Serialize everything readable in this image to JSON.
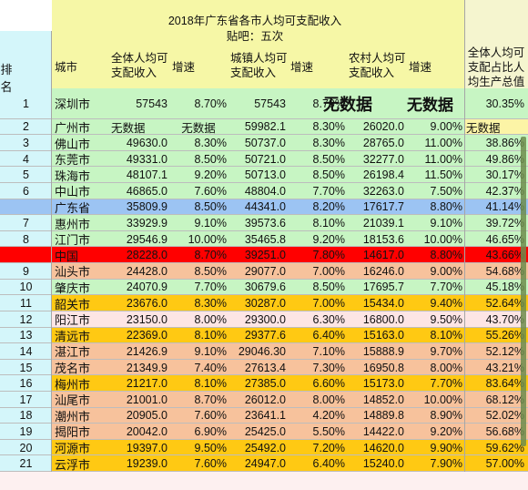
{
  "title": "2018年广东省各市人均可支配收入",
  "subtitle": "贴吧：五次",
  "headers": {
    "rank": "排名",
    "city": "城市",
    "all_income": "全体人均可支配收入",
    "all_growth": "增速",
    "urban_income": "城镇人均可支配收入",
    "urban_growth": "增速",
    "rural_income": "农村人均可支配收入",
    "rural_growth": "增速",
    "gdp_ratio": "全体人均可支配占比人均生产总值"
  },
  "colors": {
    "green": "#c7f5c3",
    "blue": "#9cc4f3",
    "red": "#ff0000",
    "orange": "#f7c29c",
    "gold": "#ffc913",
    "pink": "#fde5e5",
    "yellow_light": "#fcf4a6"
  },
  "rows": [
    {
      "rank": "1",
      "city": "深圳市",
      "all": "57543",
      "all_g": "8.70%",
      "urb": "57543",
      "urb_g": "8.70%",
      "rur": "无数据",
      "rur_g": "无数据",
      "gdp": "30.35%",
      "color": "#c7f5c3",
      "special": "big_nd"
    },
    {
      "rank": "2",
      "city": "广州市",
      "all": "无数据",
      "all_g": "无数据",
      "urb": "59982.1",
      "urb_g": "8.30%",
      "rur": "26020.0",
      "rur_g": "9.00%",
      "gdp": "无数据",
      "color": "#c7f5c3",
      "special": "nd",
      "gdp_color": "#fcf4a6"
    },
    {
      "rank": "3",
      "city": "佛山市",
      "all": "49630.0",
      "all_g": "8.30%",
      "urb": "50737.0",
      "urb_g": "8.30%",
      "rur": "28765.0",
      "rur_g": "11.00%",
      "gdp": "38.86%",
      "color": "#c7f5c3"
    },
    {
      "rank": "4",
      "city": "东莞市",
      "all": "49331.0",
      "all_g": "8.50%",
      "urb": "50721.0",
      "urb_g": "8.50%",
      "rur": "32277.0",
      "rur_g": "11.00%",
      "gdp": "49.86%",
      "color": "#c7f5c3"
    },
    {
      "rank": "5",
      "city": "珠海市",
      "all": "48107.1",
      "all_g": "9.20%",
      "urb": "50713.0",
      "urb_g": "8.50%",
      "rur": "26198.4",
      "rur_g": "11.50%",
      "gdp": "30.17%",
      "color": "#c7f5c3"
    },
    {
      "rank": "6",
      "city": "中山市",
      "all": "46865.0",
      "all_g": "7.60%",
      "urb": "48804.0",
      "urb_g": "7.70%",
      "rur": "32263.0",
      "rur_g": "7.50%",
      "gdp": "42.37%",
      "color": "#c7f5c3"
    },
    {
      "rank": "",
      "city": "广东省",
      "all": "35809.9",
      "all_g": "8.50%",
      "urb": "44341.0",
      "urb_g": "8.20%",
      "rur": "17617.7",
      "rur_g": "8.80%",
      "gdp": "41.14%",
      "color": "#9cc4f3",
      "split": true
    },
    {
      "rank": "7",
      "city": "惠州市",
      "all": "33929.9",
      "all_g": "9.10%",
      "urb": "39573.6",
      "urb_g": "8.10%",
      "rur": "21039.1",
      "rur_g": "9.10%",
      "gdp": "39.72%",
      "color": "#c7f5c3"
    },
    {
      "rank": "8",
      "city": "江门市",
      "all": "29546.9",
      "all_g": "10.00%",
      "urb": "35465.8",
      "urb_g": "9.20%",
      "rur": "18153.6",
      "rur_g": "10.00%",
      "gdp": "46.65%",
      "color": "#c7f5c3"
    },
    {
      "rank": "",
      "city": "中国",
      "all": "28228.0",
      "all_g": "8.70%",
      "urb": "39251.0",
      "urb_g": "7.80%",
      "rur": "14617.0",
      "rur_g": "8.80%",
      "gdp": "43.66%",
      "color": "#ff0000",
      "split": true
    },
    {
      "rank": "9",
      "city": "汕头市",
      "all": "24428.0",
      "all_g": "8.50%",
      "urb": "29077.0",
      "urb_g": "7.00%",
      "rur": "16246.0",
      "rur_g": "9.00%",
      "gdp": "54.68%",
      "color": "#f7c29c"
    },
    {
      "rank": "10",
      "city": "肇庆市",
      "all": "24070.9",
      "all_g": "7.70%",
      "urb": "30679.6",
      "urb_g": "8.50%",
      "rur": "17695.7",
      "rur_g": "7.70%",
      "gdp": "45.18%",
      "color": "#c7f5c3"
    },
    {
      "rank": "11",
      "city": "韶关市",
      "all": "23676.0",
      "all_g": "8.30%",
      "urb": "30287.0",
      "urb_g": "7.00%",
      "rur": "15434.0",
      "rur_g": "9.40%",
      "gdp": "52.64%",
      "color": "#ffc913"
    },
    {
      "rank": "12",
      "city": "阳江市",
      "all": "23150.0",
      "all_g": "8.00%",
      "urb": "29300.0",
      "urb_g": "6.30%",
      "rur": "16800.0",
      "rur_g": "9.50%",
      "gdp": "43.70%",
      "color": "#fde5e5"
    },
    {
      "rank": "13",
      "city": "清远市",
      "all": "22369.0",
      "all_g": "8.10%",
      "urb": "29377.6",
      "urb_g": "6.40%",
      "rur": "15163.0",
      "rur_g": "8.10%",
      "gdp": "55.26%",
      "color": "#ffc913"
    },
    {
      "rank": "14",
      "city": "湛江市",
      "all": "21426.9",
      "all_g": "9.10%",
      "urb": "29046.30",
      "urb_g": "7.10%",
      "rur": "15888.9",
      "rur_g": "9.70%",
      "gdp": "52.12%",
      "color": "#f7c29c"
    },
    {
      "rank": "15",
      "city": "茂名市",
      "all": "21349.9",
      "all_g": "7.40%",
      "urb": "27613.4",
      "urb_g": "7.30%",
      "rur": "16950.8",
      "rur_g": "8.00%",
      "gdp": "43.21%",
      "color": "#f7c29c"
    },
    {
      "rank": "16",
      "city": "梅州市",
      "all": "21217.0",
      "all_g": "8.10%",
      "urb": "27385.0",
      "urb_g": "6.60%",
      "rur": "15173.0",
      "rur_g": "7.70%",
      "gdp": "83.64%",
      "color": "#ffc913"
    },
    {
      "rank": "17",
      "city": "汕尾市",
      "all": "21001.0",
      "all_g": "8.70%",
      "urb": "26012.0",
      "urb_g": "8.00%",
      "rur": "14852.0",
      "rur_g": "10.00%",
      "gdp": "68.12%",
      "color": "#f7c29c"
    },
    {
      "rank": "18",
      "city": "潮州市",
      "all": "20905.0",
      "all_g": "7.60%",
      "urb": "23641.1",
      "urb_g": "4.20%",
      "rur": "14889.8",
      "rur_g": "8.90%",
      "gdp": "52.02%",
      "color": "#f7c29c"
    },
    {
      "rank": "19",
      "city": "揭阳市",
      "all": "20042.0",
      "all_g": "6.90%",
      "urb": "25425.0",
      "urb_g": "5.50%",
      "rur": "14422.0",
      "rur_g": "9.20%",
      "gdp": "56.68%",
      "color": "#f7c29c"
    },
    {
      "rank": "20",
      "city": "河源市",
      "all": "19397.0",
      "all_g": "9.50%",
      "urb": "25492.0",
      "urb_g": "7.20%",
      "rur": "14620.0",
      "rur_g": "9.90%",
      "gdp": "59.62%",
      "color": "#ffc913"
    },
    {
      "rank": "21",
      "city": "云浮市",
      "all": "19239.0",
      "all_g": "7.60%",
      "urb": "24947.0",
      "urb_g": "6.40%",
      "rur": "15240.0",
      "rur_g": "7.90%",
      "gdp": "57.00%",
      "color": "#ffc913"
    }
  ]
}
